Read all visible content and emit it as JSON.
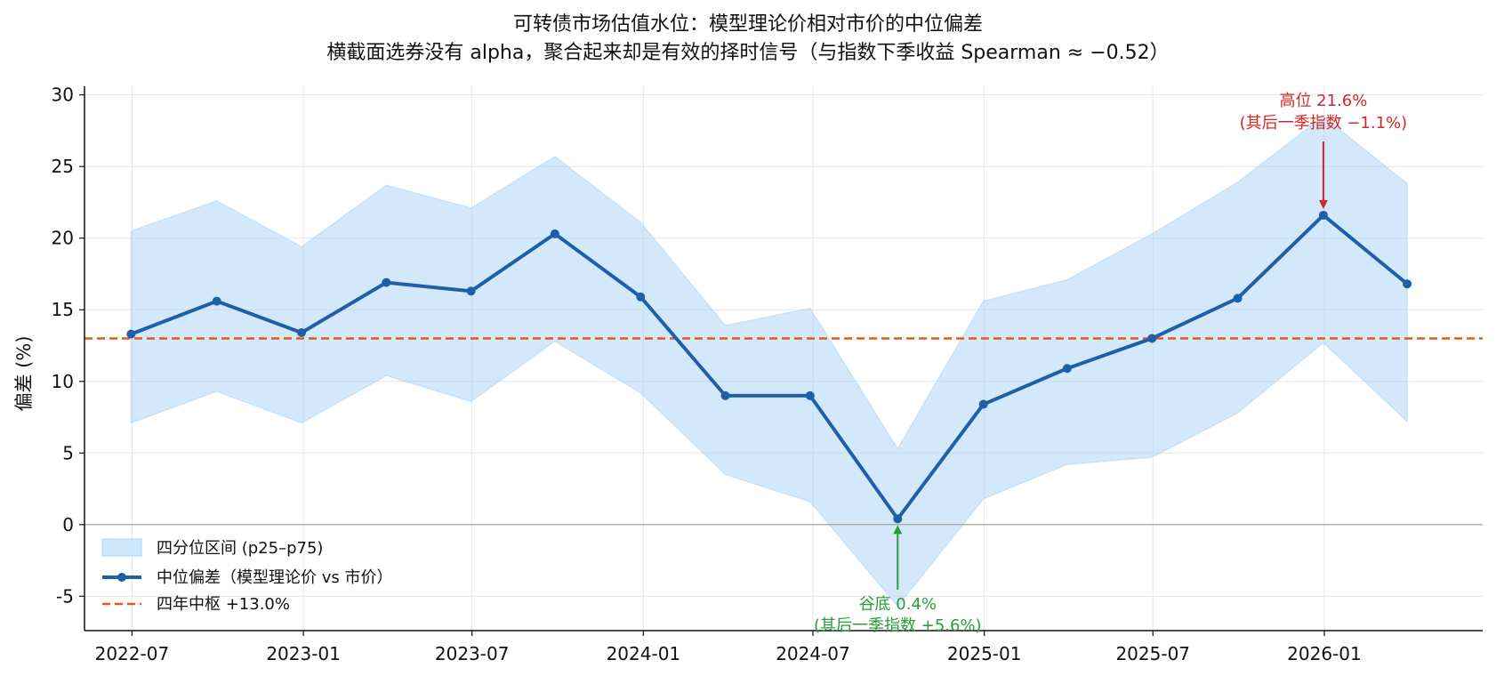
{
  "chart_data": {
    "type": "line",
    "title": "可转债市场估值水位：模型理论价相对市价的中位偏差",
    "subtitle": "横截面选券没有 alpha，聚合起来却是有效的择时信号（与指数下季收益 Spearman ≈ −0.52）",
    "xlabel": "",
    "ylabel": "偏差 (%)",
    "ylim": [
      -7.4,
      30.6
    ],
    "xlim": [
      "2022-05-11",
      "2026-06-20"
    ],
    "yticks": [
      -5,
      0,
      5,
      10,
      15,
      20,
      25,
      30
    ],
    "xticks": [
      "2022-07",
      "2023-01",
      "2023-07",
      "2024-01",
      "2024-07",
      "2025-01",
      "2025-07",
      "2026-01"
    ],
    "grid": true,
    "legend_position": "lower-left",
    "dates": [
      "2022-06-30",
      "2022-09-30",
      "2022-12-30",
      "2023-03-31",
      "2023-06-30",
      "2023-09-28",
      "2023-12-29",
      "2024-03-29",
      "2024-06-28",
      "2024-09-30",
      "2024-12-31",
      "2025-03-31",
      "2025-06-30",
      "2025-09-30",
      "2025-12-31",
      "2026-03-31"
    ],
    "series": [
      {
        "name": "中位偏差（模型理论价 vs 市价）",
        "color": "#1f5fa8",
        "values": [
          13.3,
          15.6,
          13.4,
          16.9,
          16.3,
          20.3,
          15.9,
          9.0,
          9.0,
          0.4,
          8.4,
          10.9,
          13.0,
          15.8,
          21.6,
          16.8
        ]
      }
    ],
    "band": {
      "name": "四分位区间 (p25–p75)",
      "color": "#a8d4f7",
      "p25": [
        7.1,
        9.3,
        7.1,
        10.4,
        8.6,
        12.8,
        9.2,
        3.5,
        1.6,
        -5.7,
        1.8,
        4.2,
        4.7,
        7.8,
        12.7,
        7.2
      ],
      "p75": [
        20.5,
        22.6,
        19.4,
        23.7,
        22.1,
        25.7,
        21.1,
        13.9,
        15.1,
        5.3,
        15.6,
        17.1,
        20.3,
        23.9,
        28.5,
        23.8
      ]
    },
    "reference_line": {
      "name": "四年中枢 +13.0%",
      "value": 13.0,
      "color": "#e05a1a"
    },
    "zero_line": {
      "value": 0
    },
    "annotations": [
      {
        "date": "2025-12-31",
        "value": 21.6,
        "text_line1": "高位 21.6%",
        "text_line2": "(其后一季指数 −1.1%)",
        "color": "#d62728",
        "direction": "down"
      },
      {
        "date": "2024-09-30",
        "value": 0.4,
        "text_line1": "谷底 0.4%",
        "text_line2": "(其后一季指数 +5.6%)",
        "color": "#2a9d3a",
        "direction": "up"
      }
    ]
  }
}
